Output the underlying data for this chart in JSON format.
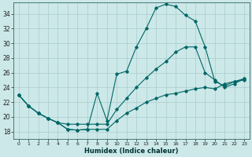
{
  "xlabel": "Humidex (Indice chaleur)",
  "background_color": "#cce8e8",
  "grid_color": "#aacccc",
  "line_color": "#006666",
  "xlim": [
    -0.5,
    23.5
  ],
  "ylim": [
    17,
    35.5
  ],
  "yticks": [
    18,
    20,
    22,
    24,
    26,
    28,
    30,
    32,
    34
  ],
  "xticks": [
    0,
    1,
    2,
    3,
    4,
    5,
    6,
    7,
    8,
    9,
    10,
    11,
    12,
    13,
    14,
    15,
    16,
    17,
    18,
    19,
    20,
    21,
    22,
    23
  ],
  "line1_x": [
    0,
    1,
    2,
    3,
    4,
    5,
    6,
    7,
    8,
    9,
    10,
    11,
    12,
    13,
    14,
    15,
    16,
    17,
    18,
    19,
    20,
    21,
    22,
    23
  ],
  "line1_y": [
    23.0,
    21.5,
    20.5,
    19.8,
    19.2,
    18.3,
    18.2,
    18.3,
    18.3,
    18.3,
    19.5,
    20.5,
    21.2,
    22.0,
    22.5,
    23.0,
    23.2,
    23.5,
    23.8,
    24.0,
    23.8,
    24.5,
    24.8,
    25.0
  ],
  "line2_x": [
    0,
    1,
    2,
    3,
    4,
    5,
    6,
    7,
    8,
    9,
    10,
    11,
    12,
    13,
    14,
    15,
    16,
    17,
    18,
    19,
    20,
    21,
    22,
    23
  ],
  "line2_y": [
    23.0,
    21.5,
    20.5,
    19.8,
    19.2,
    18.3,
    18.2,
    18.3,
    23.2,
    19.5,
    25.8,
    26.2,
    29.5,
    32.0,
    34.8,
    35.3,
    35.0,
    33.8,
    33.0,
    29.5,
    24.8,
    24.2,
    24.8,
    25.2
  ],
  "line3_x": [
    0,
    1,
    2,
    3,
    4,
    5,
    6,
    7,
    8,
    9,
    10,
    11,
    12,
    13,
    14,
    15,
    16,
    17,
    18,
    19,
    20,
    21,
    22,
    23
  ],
  "line3_y": [
    23.0,
    21.5,
    20.5,
    19.8,
    19.2,
    19.0,
    19.0,
    19.0,
    19.0,
    19.0,
    21.0,
    22.5,
    24.0,
    25.3,
    26.5,
    27.5,
    28.8,
    29.5,
    29.5,
    26.0,
    25.0,
    24.0,
    24.5,
    25.2
  ]
}
